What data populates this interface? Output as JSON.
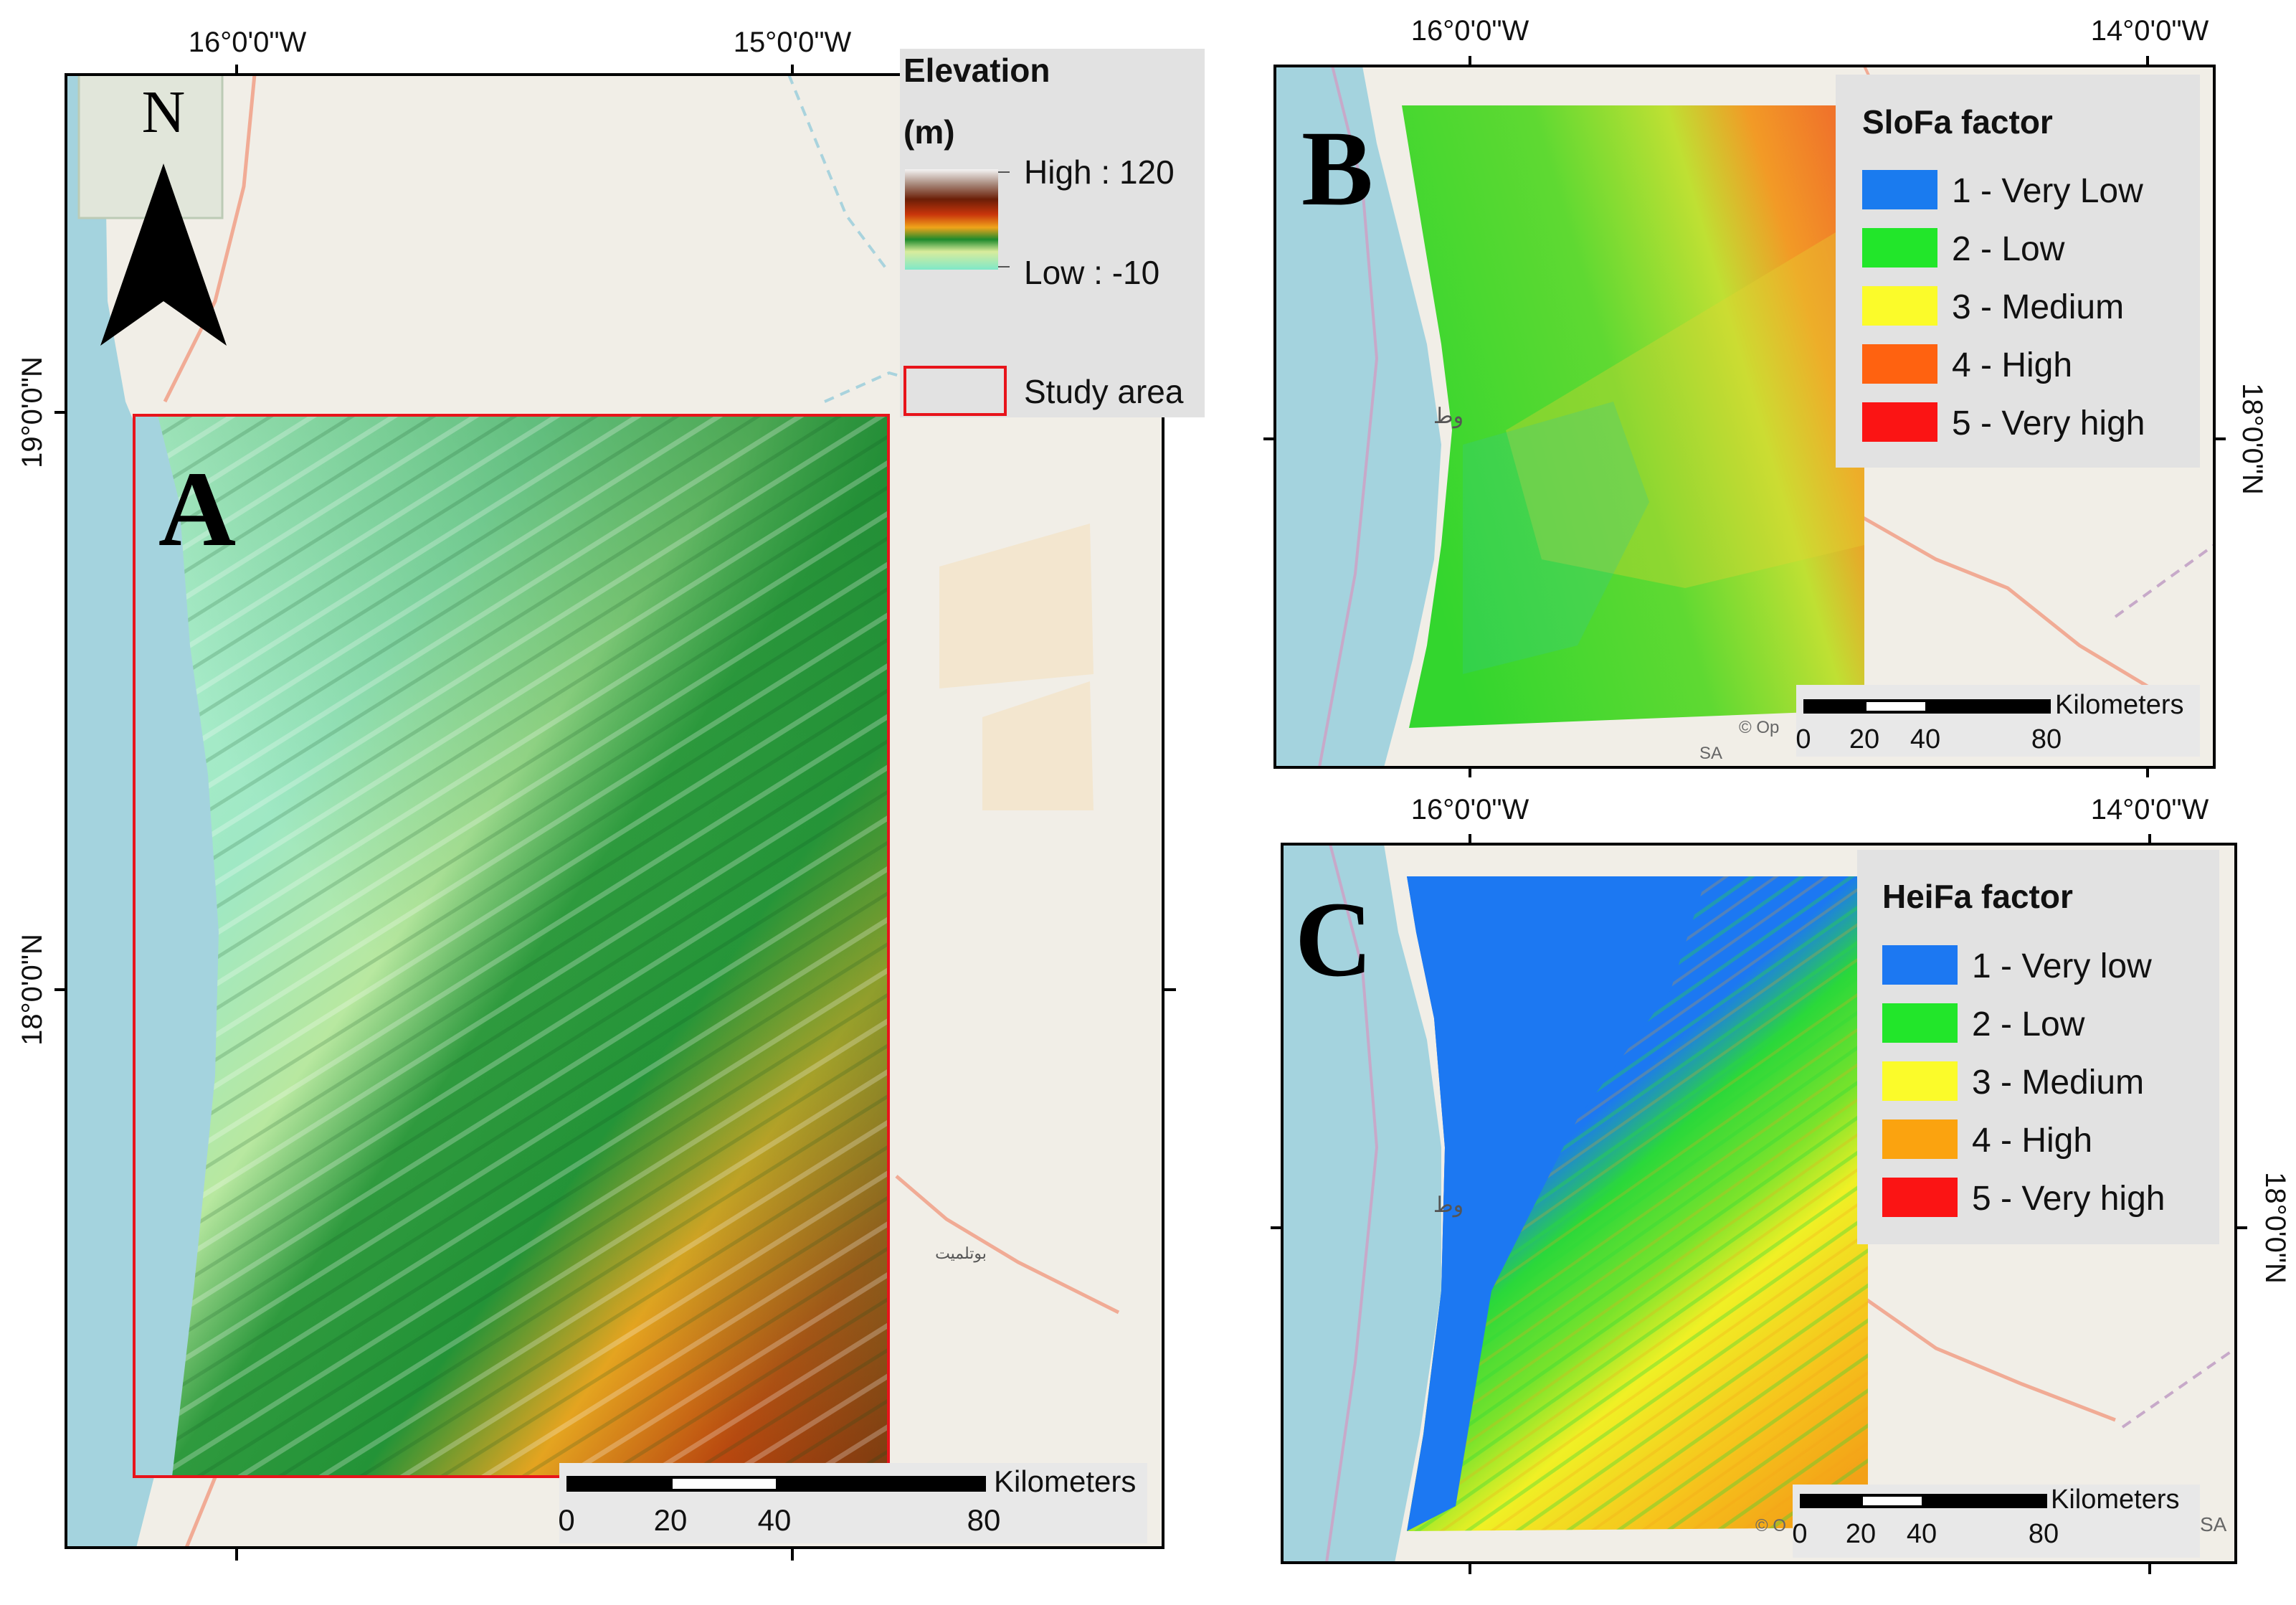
{
  "colors": {
    "sea": "#a4d3de",
    "land": "#f1eee7",
    "road": "#f1ab95",
    "border": "#c7a9c9",
    "legend_bg": "#e2e2e2",
    "study_area": "#e8141b"
  },
  "panel_a": {
    "letter": "A",
    "north_label": "N",
    "top_ticks": [
      "16°0'0\"W",
      "15°0'0\"W"
    ],
    "left_ticks": [
      "19°0'0\"N",
      "18°0'0\"N"
    ],
    "legend": {
      "title_line1": "Elevation",
      "title_line2": "(m)",
      "high_label": "High : 120",
      "low_label": "Low : -10",
      "study_area_label": "Study area"
    },
    "scalebar": {
      "unit": "Kilometers",
      "labels": [
        "0",
        "20",
        "40",
        "80"
      ]
    },
    "map_labels": [
      "بوتلميت"
    ]
  },
  "panel_b": {
    "letter": "B",
    "top_ticks": [
      "16°0'0\"W",
      "14°0'0\"W"
    ],
    "right_ticks": [
      "18°0'0\"N"
    ],
    "legend": {
      "title": "SloFa factor",
      "items": [
        {
          "label": "1 - Very Low",
          "color": "#1a7bef"
        },
        {
          "label": "2 - Low",
          "color": "#22e62a"
        },
        {
          "label": "3 - Medium",
          "color": "#fbfb2a"
        },
        {
          "label": "4 - High",
          "color": "#ff6210"
        },
        {
          "label": "5 - Very high",
          "color": "#fb1414"
        }
      ]
    },
    "scalebar": {
      "unit": "Kilometers",
      "labels": [
        "0",
        "20",
        "40",
        "80"
      ]
    },
    "attribution": "© Op",
    "attribution2": "SA",
    "map_labels": [
      "وط"
    ]
  },
  "panel_c": {
    "letter": "C",
    "top_ticks": [
      "16°0'0\"W",
      "14°0'0\"W"
    ],
    "right_ticks": [
      "18°0'0\"N"
    ],
    "legend": {
      "title": "HeiFa factor",
      "items": [
        {
          "label": "1 - Very low",
          "color": "#1c78f2"
        },
        {
          "label": "2 - Low",
          "color": "#22e62a"
        },
        {
          "label": "3 - Medium",
          "color": "#fbfb2a"
        },
        {
          "label": "4 - High",
          "color": "#fba30f"
        },
        {
          "label": "5 - Very high",
          "color": "#fb1414"
        }
      ]
    },
    "scalebar": {
      "unit": "Kilometers",
      "labels": [
        "0",
        "20",
        "40",
        "80"
      ]
    },
    "attribution": "© O",
    "attribution2": "SA",
    "map_labels": [
      "وط"
    ]
  }
}
